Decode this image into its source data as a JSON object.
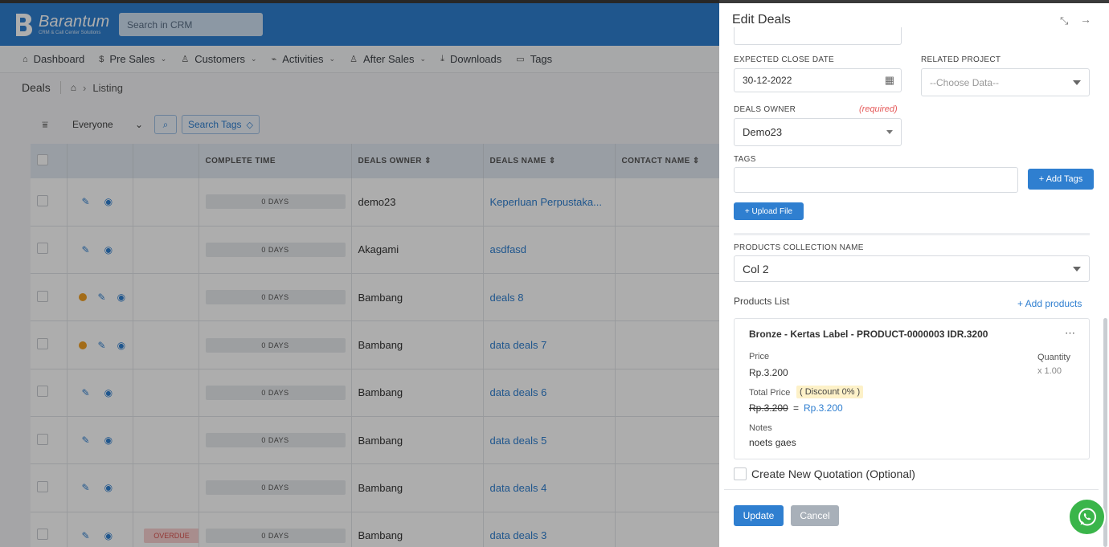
{
  "app": {
    "brand": "Barantum",
    "brand_sub": "CRM & Call Center Solutions",
    "search_placeholder": "Search in CRM"
  },
  "nav": [
    {
      "label": "Dashboard",
      "icon": "home-icon"
    },
    {
      "label": "Pre Sales",
      "icon": "dollar-icon"
    },
    {
      "label": "Customers",
      "icon": "users-icon"
    },
    {
      "label": "Activities",
      "icon": "activity-icon"
    },
    {
      "label": "After Sales",
      "icon": "users-icon"
    },
    {
      "label": "Downloads",
      "icon": "download-icon"
    },
    {
      "label": "Tags",
      "icon": "folder-icon"
    }
  ],
  "breadcrumb": {
    "title": "Deals",
    "current": "Listing"
  },
  "filter": {
    "owner": "Everyone",
    "tags_label": "Search Tags"
  },
  "table": {
    "headers": [
      "COMPLETE TIME",
      "DEALS OWNER",
      "DEALS NAME",
      "CONTACT NAME"
    ],
    "rows": [
      {
        "days": "0 DAYS",
        "owner": "demo23",
        "name": "Keperluan Perpustaka...",
        "dot": false,
        "status": ""
      },
      {
        "days": "0 DAYS",
        "owner": "Akagami",
        "name": "asdfasd",
        "dot": false,
        "status": ""
      },
      {
        "days": "0 DAYS",
        "owner": "Bambang",
        "name": "deals 8",
        "dot": true,
        "status": ""
      },
      {
        "days": "0 DAYS",
        "owner": "Bambang",
        "name": "data deals 7",
        "dot": true,
        "status": ""
      },
      {
        "days": "0 DAYS",
        "owner": "Bambang",
        "name": "data deals 6",
        "dot": false,
        "status": ""
      },
      {
        "days": "0 DAYS",
        "owner": "Bambang",
        "name": "data deals 5",
        "dot": false,
        "status": ""
      },
      {
        "days": "0 DAYS",
        "owner": "Bambang",
        "name": "data deals 4",
        "dot": false,
        "status": ""
      },
      {
        "days": "0 DAYS",
        "owner": "Bambang",
        "name": "data deals 3",
        "dot": false,
        "status": "OVERDUE"
      }
    ]
  },
  "panel": {
    "title": "Edit Deals",
    "close_date_label": "EXPECTED CLOSE DATE",
    "close_date_value": "30-12-2022",
    "project_label": "RELATED PROJECT",
    "project_placeholder": "--Choose Data--",
    "owner_label": "DEALS OWNER",
    "required": "(required)",
    "owner_value": "Demo23",
    "tags_label": "TAGS",
    "add_tags": "+ Add Tags",
    "upload_file": "+ Upload File",
    "collection_label": "PRODUCTS COLLECTION NAME",
    "collection_value": "Col 2",
    "products_list": "Products List",
    "add_products": "+ Add products",
    "product": {
      "title": "Bronze - Kertas Label - PRODUCT-0000003 IDR.3200",
      "price_label": "Price",
      "price": "Rp.3.200",
      "qty_label": "Quantity",
      "qty": "x 1.00",
      "total_label": "Total Price",
      "discount": "( Discount 0% )",
      "original": "Rp.3.200",
      "equals": "=",
      "final": "Rp.3.200",
      "notes_label": "Notes",
      "notes": "noets gaes"
    },
    "quotation": "Create New Quotation (Optional)",
    "update": "Update",
    "cancel": "Cancel"
  },
  "colors": {
    "primary": "#2f7fd0",
    "whatsapp": "#3ab54a",
    "required": "#e55a5a",
    "overdue_bg": "#f8d0d0"
  }
}
